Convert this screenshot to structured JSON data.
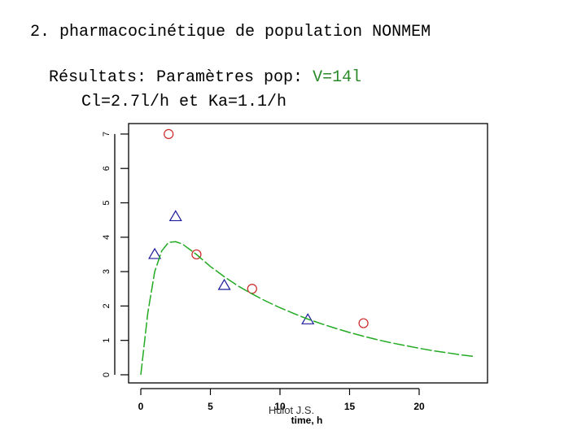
{
  "slide": {
    "title": "2. pharmacocinétique de population NONMEM",
    "results_prefix": "Résultats: Paramètres pop: ",
    "results_v": "V=14l",
    "results_line2": "Cl=2.7l/h et Ka=1.1/h",
    "author": "Hulot J.S."
  },
  "chart_data": {
    "type": "scatter",
    "xlabel": "time, h",
    "ylabel": "",
    "xlim": [
      0,
      24
    ],
    "ylim": [
      0,
      7
    ],
    "xticks": [
      0,
      5,
      10,
      15,
      20
    ],
    "yticks": [
      0,
      1,
      2,
      3,
      4,
      5,
      6,
      7
    ],
    "grid": false,
    "series": [
      {
        "marker": "circle",
        "color": "#cc2222",
        "x": [
          2,
          4,
          8,
          16
        ],
        "y": [
          7.0,
          3.5,
          2.5,
          1.5
        ]
      },
      {
        "marker": "triangle",
        "color": "#1a1a99",
        "x": [
          1,
          2.5,
          6,
          12
        ],
        "y": [
          3.5,
          4.6,
          2.6,
          1.6
        ]
      },
      {
        "marker": "line",
        "color": "#22aa22",
        "x": [
          0,
          0.5,
          1,
          1.5,
          2,
          2.5,
          3,
          4,
          5,
          6,
          7,
          8,
          9,
          10,
          11,
          12,
          13,
          14,
          15,
          16,
          17,
          18,
          19,
          20,
          21,
          22,
          23,
          24
        ],
        "y": [
          0,
          1.8,
          3.0,
          3.6,
          3.85,
          3.87,
          3.8,
          3.5,
          3.15,
          2.85,
          2.58,
          2.35,
          2.14,
          1.95,
          1.78,
          1.62,
          1.48,
          1.35,
          1.23,
          1.12,
          1.02,
          0.93,
          0.85,
          0.77,
          0.7,
          0.64,
          0.58,
          0.53
        ]
      }
    ]
  }
}
